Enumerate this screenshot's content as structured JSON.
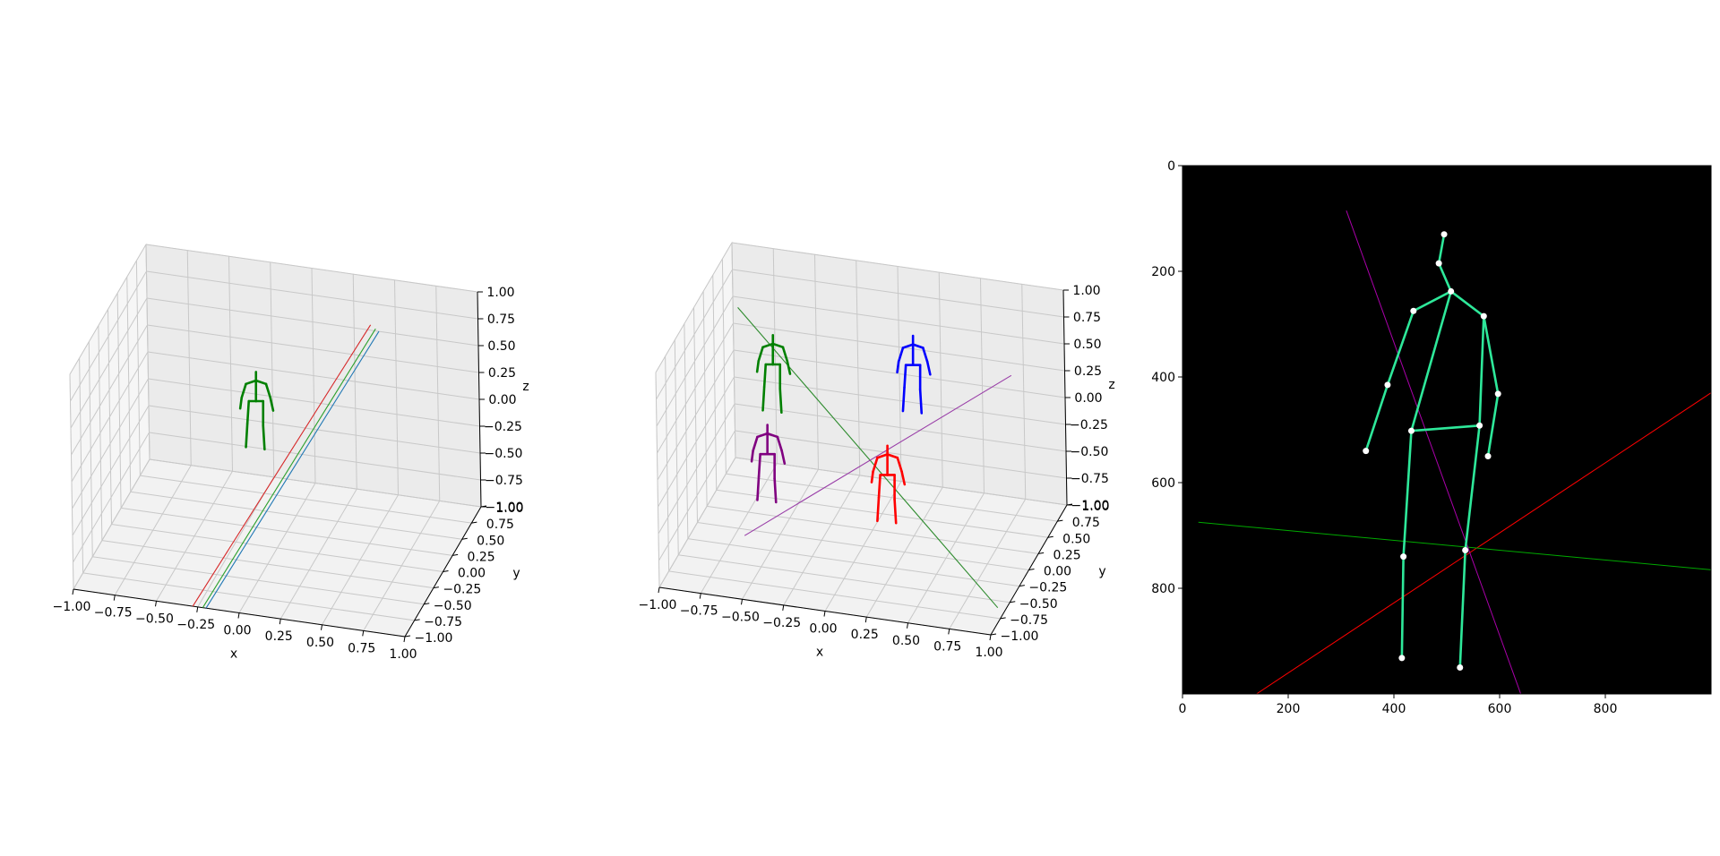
{
  "chart_data": [
    {
      "type": "scatter3d",
      "xlabel": "x",
      "ylabel": "y",
      "zlabel": "z",
      "xlim": [
        -1,
        1
      ],
      "ylim": [
        -1,
        1
      ],
      "zlim": [
        -1,
        1
      ],
      "grid": true,
      "xticks": [
        "−1.00",
        "−0.75",
        "−0.50",
        "−0.25",
        "0.00",
        "0.25",
        "0.50",
        "0.75",
        "1.00"
      ],
      "yticks": [
        "−1.00",
        "−0.75",
        "−0.50",
        "−0.25",
        "0.00",
        "0.25",
        "0.50",
        "0.75",
        "1.00"
      ],
      "zticks": [
        "−1.00",
        "−0.75",
        "−0.50",
        "−0.25",
        "0.00",
        "0.25",
        "0.50",
        "0.75",
        "1.00"
      ],
      "skeletons": [
        {
          "color": "#008000",
          "pose": [
            -0.12,
            0.02,
            0.2
          ]
        }
      ],
      "lines": [
        {
          "color": "#d62728",
          "from": [
            -0.28,
            -1.0,
            -1.0
          ],
          "to": [
            0.35,
            1.0,
            0.55
          ]
        },
        {
          "color": "#2ca02c",
          "from": [
            -0.22,
            -1.0,
            -1.0
          ],
          "to": [
            0.38,
            1.0,
            0.52
          ]
        },
        {
          "color": "#1f77b4",
          "from": [
            -0.2,
            -1.0,
            -1.0
          ],
          "to": [
            0.4,
            1.0,
            0.5
          ]
        }
      ]
    },
    {
      "type": "scatter3d",
      "xlabel": "x",
      "ylabel": "y",
      "zlabel": "z",
      "xlim": [
        -1,
        1
      ],
      "ylim": [
        -1,
        1
      ],
      "zlim": [
        -1,
        1
      ],
      "grid": true,
      "xticks": [
        "−1.00",
        "−0.75",
        "−0.50",
        "−0.25",
        "0.00",
        "0.25",
        "0.50",
        "0.75",
        "1.00"
      ],
      "yticks": [
        "−1.00",
        "−0.75",
        "−0.50",
        "−0.25",
        "0.00",
        "0.25",
        "0.50",
        "0.75",
        "1.00"
      ],
      "zticks": [
        "−1.00",
        "−0.75",
        "−0.50",
        "−0.25",
        "0.00",
        "0.25",
        "0.50",
        "0.75",
        "1.00"
      ],
      "skeletons": [
        {
          "color": "#008000",
          "pose": [
            -0.6,
            0.3,
            0.25
          ]
        },
        {
          "color": "#0000ff",
          "pose": [
            0.2,
            0.5,
            0.3
          ]
        },
        {
          "color": "#800080",
          "pose": [
            -0.5,
            -0.3,
            -0.2
          ]
        },
        {
          "color": "#ff0000",
          "pose": [
            0.2,
            -0.2,
            -0.3
          ]
        }
      ],
      "lines": [
        {
          "color": "#2e8b2e",
          "from": [
            -0.9,
            0.7,
            0.6
          ],
          "to": [
            0.95,
            -0.6,
            -1.0
          ]
        },
        {
          "color": "#9a3fa8",
          "from": [
            -0.55,
            -0.7,
            -0.6
          ],
          "to": [
            0.7,
            0.9,
            0.2
          ]
        }
      ]
    },
    {
      "type": "image",
      "xlim": [
        0,
        1000
      ],
      "ylim": [
        1000,
        0
      ],
      "xticks": [
        0,
        200,
        400,
        600,
        800
      ],
      "yticks": [
        0,
        200,
        400,
        600,
        800
      ],
      "background": "#000000",
      "skeleton_color": "#2ee89a",
      "keypoints": [
        [
          495,
          130
        ],
        [
          485,
          185
        ],
        [
          508,
          238
        ],
        [
          437,
          275
        ],
        [
          570,
          285
        ],
        [
          388,
          415
        ],
        [
          597,
          432
        ],
        [
          347,
          540
        ],
        [
          578,
          550
        ],
        [
          433,
          502
        ],
        [
          562,
          492
        ],
        [
          418,
          740
        ],
        [
          535,
          728
        ],
        [
          415,
          932
        ],
        [
          525,
          950
        ]
      ],
      "edges": [
        [
          0,
          1
        ],
        [
          1,
          2
        ],
        [
          2,
          3
        ],
        [
          2,
          4
        ],
        [
          3,
          5
        ],
        [
          5,
          7
        ],
        [
          4,
          6
        ],
        [
          6,
          8
        ],
        [
          2,
          9
        ],
        [
          9,
          10
        ],
        [
          10,
          4
        ],
        [
          9,
          11
        ],
        [
          11,
          13
        ],
        [
          10,
          12
        ],
        [
          12,
          14
        ]
      ],
      "lines": [
        {
          "color": "#ff0000",
          "from": [
            140,
            1000
          ],
          "to": [
            1000,
            430
          ]
        },
        {
          "color": "#00aa00",
          "from": [
            30,
            675
          ],
          "to": [
            1000,
            765
          ]
        },
        {
          "color": "#aa00aa",
          "from": [
            310,
            85
          ],
          "to": [
            640,
            1000
          ]
        }
      ]
    }
  ]
}
